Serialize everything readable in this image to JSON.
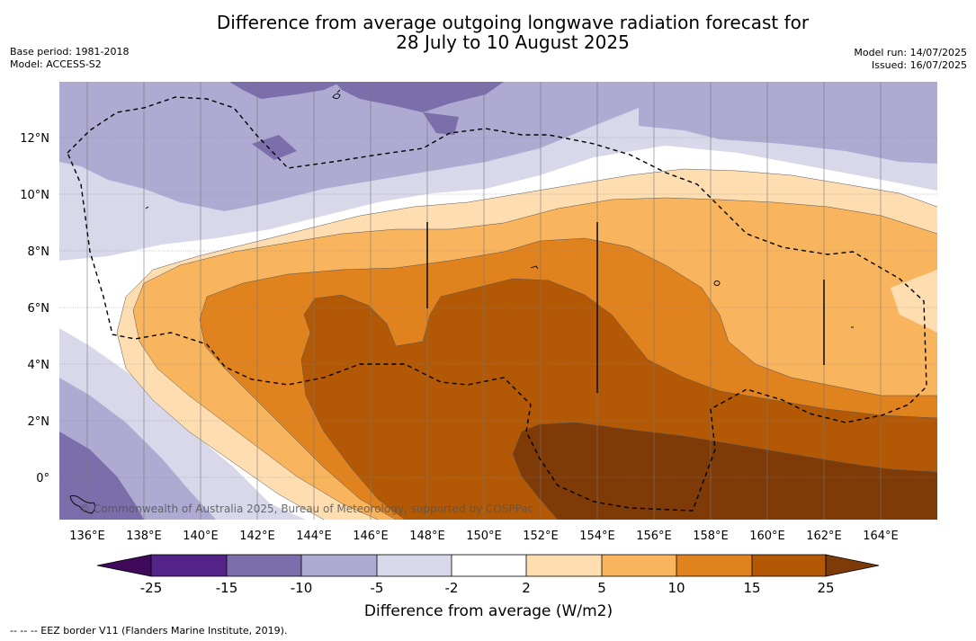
{
  "title_line1": "Difference from average outgoing longwave radiation forecast for",
  "title_line2": "28 July to 10 August 2025",
  "base_period": "Base period: 1981-2018",
  "model": "Model: ACCESS-S2",
  "model_run": "Model run: 14/07/2025",
  "issued": "Issued: 16/07/2025",
  "watermark": "© Commonwealth of Australia 2025, Bureau of Meteorology, supported by COSPPac",
  "footnote": "-- -- -- EEZ border V11 (Flanders Marine Institute, 2019).",
  "colorbar_title": "Difference from average (W/m2)",
  "colorbar_labels": [
    "-25",
    "-15",
    "-10",
    "-5",
    "-2",
    "2",
    "5",
    "10",
    "15",
    "25"
  ],
  "colors": {
    "le_-25": "#3f0a5c",
    "-25_-15": "#53238a",
    "-15_-10": "#7c6dab",
    "-10_-5": "#aeaad2",
    "-5_-2": "#d8d8ea",
    "-2_2": "#ffffff",
    "2_5": "#fedeb1",
    "5_10": "#f9b45e",
    "10_15": "#e0821e",
    "15_25": "#b35906",
    "ge_25": "#7f3b07"
  },
  "map": {
    "x_ticks": [
      "136°E",
      "138°E",
      "140°E",
      "142°E",
      "144°E",
      "146°E",
      "148°E",
      "150°E",
      "152°E",
      "154°E",
      "156°E",
      "158°E",
      "160°E",
      "162°E",
      "164°E"
    ],
    "y_ticks": [
      "12°N",
      "10°N",
      "8°N",
      "6°N",
      "4°N",
      "2°N",
      "0°"
    ],
    "lon_range": [
      135,
      166
    ],
    "lat_range": [
      -1.5,
      13.9
    ],
    "eez_border": "dashed",
    "gridlines": true
  }
}
